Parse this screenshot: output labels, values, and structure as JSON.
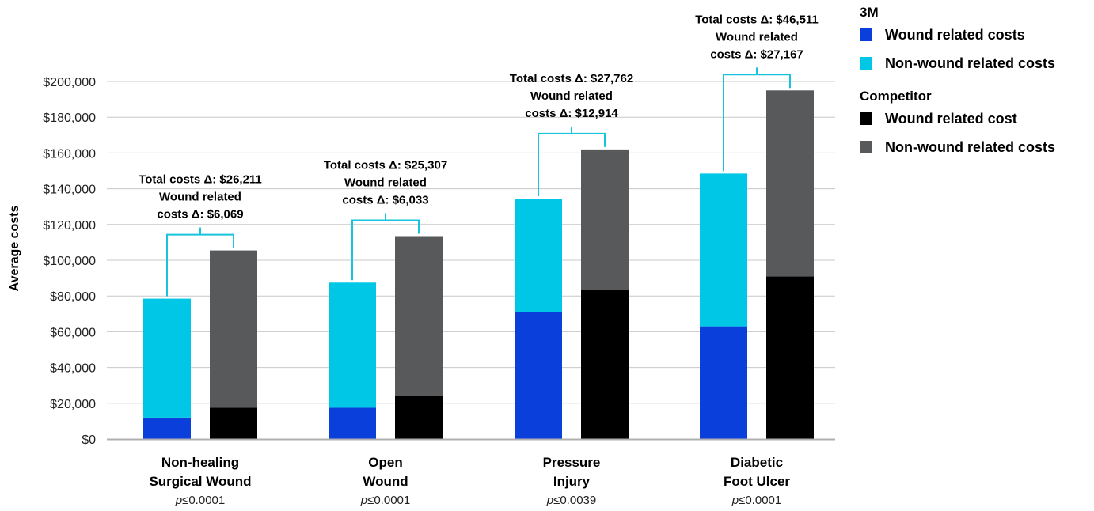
{
  "chart_data": {
    "type": "bar",
    "stacked": true,
    "ylabel": "Average costs",
    "ylim": [
      0,
      200000
    ],
    "yticks": [
      0,
      20000,
      40000,
      60000,
      80000,
      100000,
      120000,
      140000,
      160000,
      180000,
      200000
    ],
    "ytick_labels": [
      "$0",
      "$20,000",
      "$40,000",
      "$60,000",
      "$80,000",
      "$100,000",
      "$120,000",
      "$140,000",
      "$160,000",
      "$180,000",
      "$200,000"
    ],
    "grid": true,
    "legend_position": "top-right",
    "categories": [
      {
        "line1": "Non-healing",
        "line2": "Surgical Wound",
        "p": "≤0.0001"
      },
      {
        "line1": "Open",
        "line2": "Wound",
        "p": "≤0.0001"
      },
      {
        "line1": "Pressure",
        "line2": "Injury",
        "p": "≤0.0039"
      },
      {
        "line1": "Diabetic",
        "line2": "Foot Ulcer",
        "p": "≤0.0001"
      }
    ],
    "p_prefix": "p",
    "groups": [
      {
        "name": "3M",
        "series": [
          {
            "name": "Wound related costs",
            "color": "#0a3fdc",
            "values": [
              12000,
              17500,
              71000,
              63000
            ]
          },
          {
            "name": "Non-wound related costs",
            "color": "#00c7e6",
            "values": [
              66500,
              70000,
              63500,
              85500
            ]
          }
        ]
      },
      {
        "name": "Competitor",
        "series": [
          {
            "name": "Wound related cost",
            "color": "#000000",
            "values": [
              17500,
              24000,
              83500,
              91000
            ]
          },
          {
            "name": "Non-wound related costs",
            "color": "#58595b",
            "values": [
              88000,
              89500,
              78500,
              104000
            ]
          }
        ]
      }
    ],
    "annotations": [
      {
        "line1": "Total costs Δ: $26,211",
        "line2": "Wound related",
        "line3": "costs Δ: $6,069"
      },
      {
        "line1": "Total costs Δ: $25,307",
        "line2": "Wound related",
        "line3": "costs Δ: $6,033"
      },
      {
        "line1": "Total costs Δ: $27,762",
        "line2": "Wound related",
        "line3": "costs Δ: $12,914"
      },
      {
        "line1": "Total costs Δ: $46,511",
        "line2": "Wound related",
        "line3": "costs Δ: $27,167"
      }
    ],
    "bracket_color": "#17c3de"
  }
}
